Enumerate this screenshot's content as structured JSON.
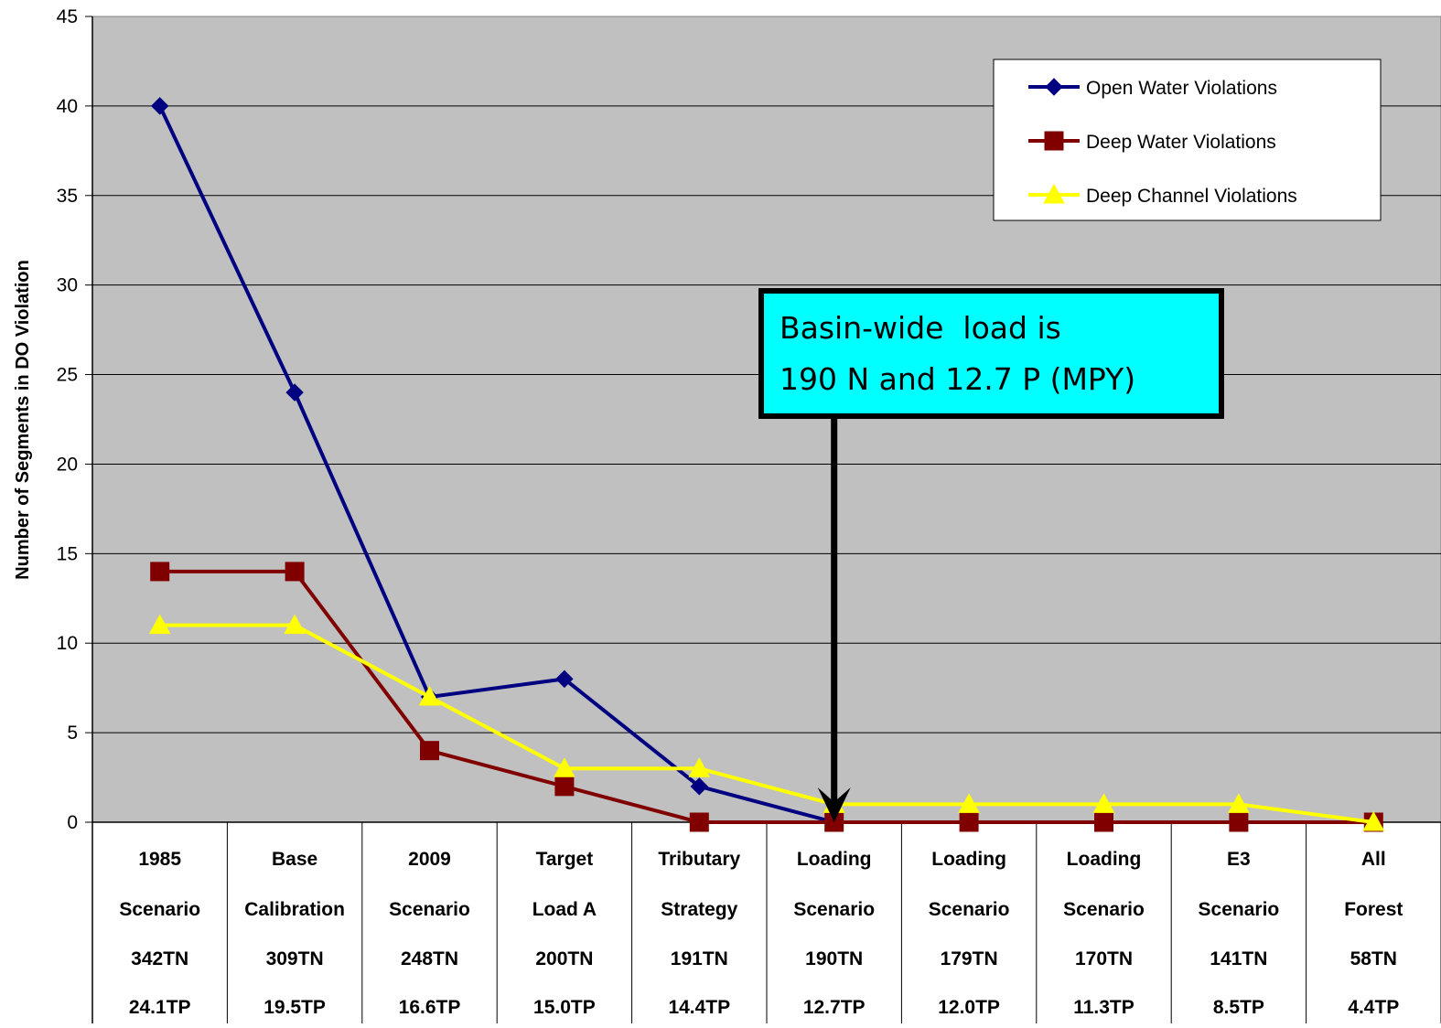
{
  "chart_data": {
    "type": "line",
    "ylabel": "Number of Segments in DO Violation",
    "ylim": [
      0,
      45
    ],
    "yticks": [
      0,
      5,
      10,
      15,
      20,
      25,
      30,
      35,
      40,
      45
    ],
    "grid": true,
    "legend_position": "top-right",
    "categories": [
      [
        "1985",
        "Scenario",
        "342TN",
        "24.1TP"
      ],
      [
        "Base",
        "Calibration",
        "309TN",
        "19.5TP"
      ],
      [
        "2009",
        "Scenario",
        "248TN",
        "16.6TP"
      ],
      [
        "Target",
        "Load A",
        "200TN",
        "15.0TP"
      ],
      [
        "Tributary",
        "Strategy",
        "191TN",
        "14.4TP"
      ],
      [
        "Loading",
        "Scenario",
        "190TN",
        "12.7TP"
      ],
      [
        "Loading",
        "Scenario",
        "179TN",
        "12.0TP"
      ],
      [
        "Loading",
        "Scenario",
        "170TN",
        "11.3TP"
      ],
      [
        "E3",
        "Scenario",
        "141TN",
        "8.5TP"
      ],
      [
        "All",
        "Forest",
        "58TN",
        "4.4TP"
      ]
    ],
    "series": [
      {
        "name": "Open Water Violations",
        "color": "#000080",
        "marker": "diamond",
        "values": [
          40,
          24,
          7,
          8,
          2,
          0,
          null,
          null,
          null,
          null
        ]
      },
      {
        "name": "Deep Water Violations",
        "color": "#800000",
        "marker": "square",
        "values": [
          14,
          14,
          4,
          2,
          0,
          0,
          0,
          0,
          0,
          0
        ]
      },
      {
        "name": "Deep Channel Violations",
        "color": "#ffff00",
        "marker": "triangle",
        "values": [
          11,
          11,
          7,
          3,
          3,
          1,
          1,
          1,
          1,
          0
        ]
      }
    ],
    "annotation": {
      "lines": [
        "Basin-wide  load is",
        "190 N and 12.7 P (MPY)"
      ],
      "background": "#00ffff",
      "points_to_category_index": 5,
      "points_to_value": 0
    },
    "plot_background": "#c0c0c0"
  }
}
